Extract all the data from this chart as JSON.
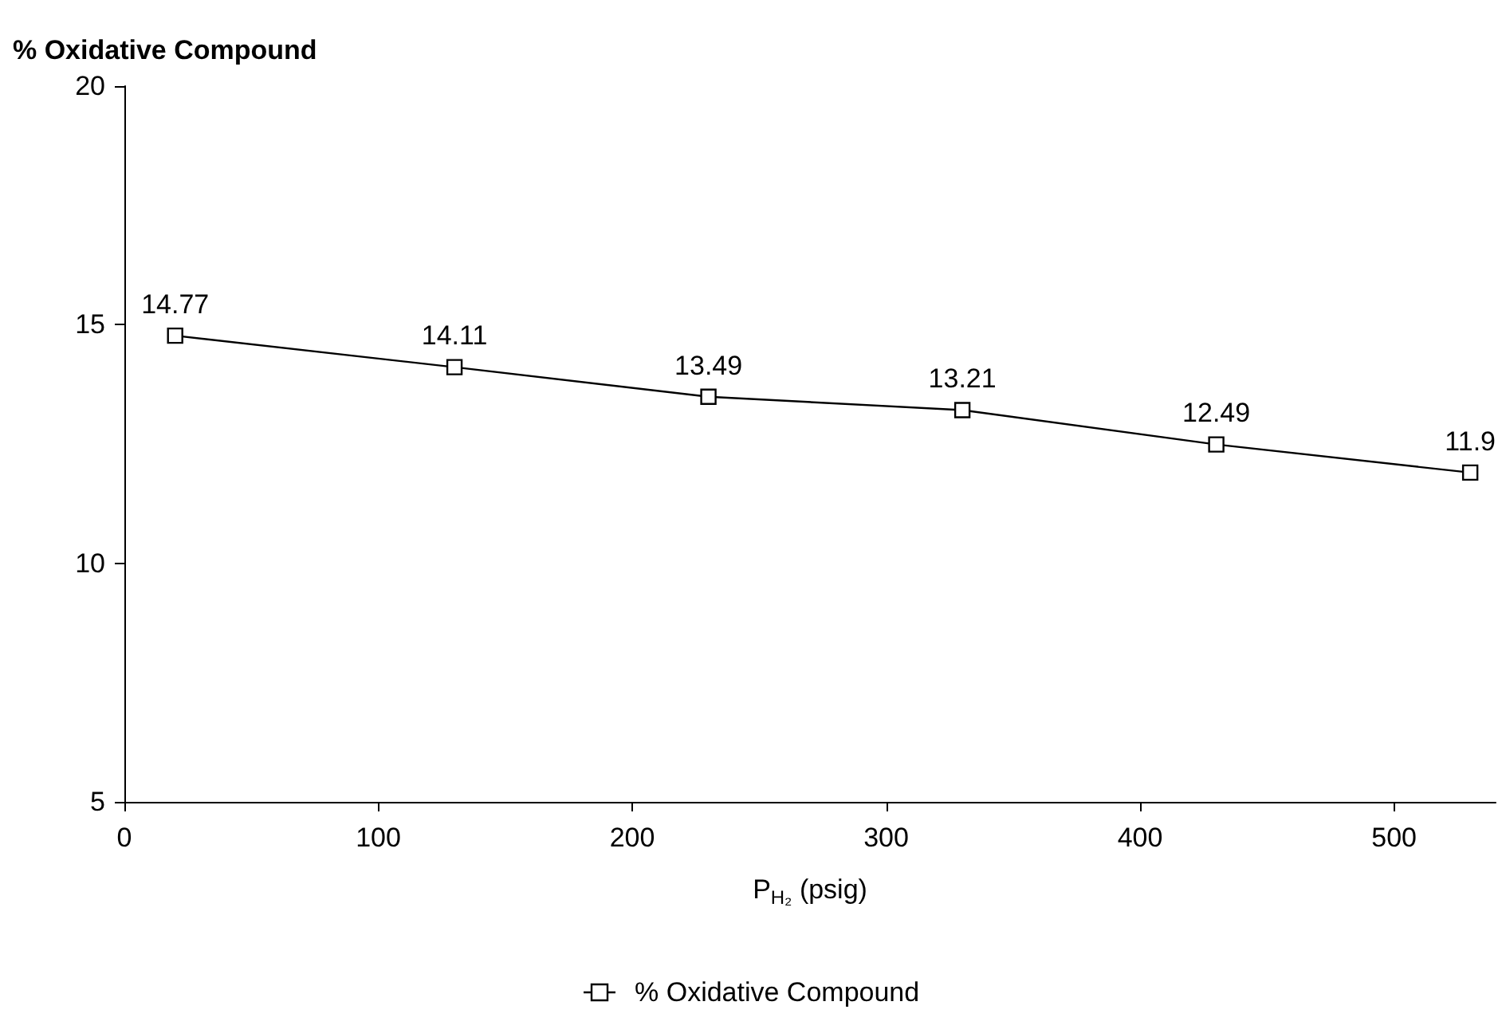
{
  "chart_data": {
    "type": "line",
    "ylabel": "% Oxidative Compound",
    "xlabel": "P$_{H₂}$ (psig)",
    "x": [
      20,
      130,
      230,
      330,
      430,
      530
    ],
    "series": [
      {
        "name": "% Oxidative Compound",
        "color": "#000000",
        "values": [
          14.77,
          14.11,
          13.49,
          13.21,
          12.49,
          11.9
        ]
      }
    ],
    "xlim": [
      0,
      540
    ],
    "xticks": [
      0,
      100,
      200,
      300,
      400,
      500
    ],
    "ylim": [
      5,
      20
    ],
    "yticks": [
      5,
      10,
      15,
      20
    ],
    "marker": "square",
    "line_style": "solid",
    "data_labels": true,
    "legend": "bottom",
    "grid": false
  }
}
